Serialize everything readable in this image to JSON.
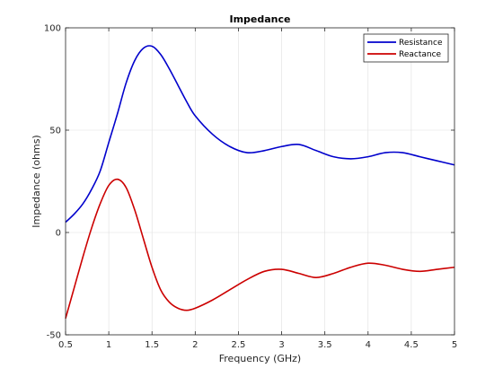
{
  "chart_data": {
    "type": "line",
    "title": "Impedance",
    "xlabel": "Frequency (GHz)",
    "ylabel": "Impedance (ohms)",
    "xlim": [
      0.5,
      5
    ],
    "ylim": [
      -50,
      100
    ],
    "xticks": [
      0.5,
      1,
      1.5,
      2,
      2.5,
      3,
      3.5,
      4,
      4.5,
      5
    ],
    "xtick_labels": [
      "0.5",
      "1",
      "1.5",
      "2",
      "2.5",
      "3",
      "3.5",
      "4",
      "4.5",
      "5"
    ],
    "yticks": [
      -50,
      0,
      50,
      100
    ],
    "ytick_labels": [
      "-50",
      "0",
      "50",
      "100"
    ],
    "grid": true,
    "legend_position": "top-right",
    "series": [
      {
        "name": "Resistance",
        "color": "#0000cc",
        "x": [
          0.5,
          0.6,
          0.7,
          0.8,
          0.9,
          1.0,
          1.1,
          1.2,
          1.3,
          1.4,
          1.5,
          1.6,
          1.7,
          1.8,
          1.9,
          2.0,
          2.2,
          2.4,
          2.6,
          2.8,
          3.0,
          3.2,
          3.4,
          3.6,
          3.8,
          4.0,
          4.2,
          4.4,
          4.6,
          4.8,
          5.0
        ],
        "y": [
          5,
          9,
          14,
          21,
          30,
          44,
          58,
          73,
          84,
          90,
          91,
          87,
          80,
          72,
          64,
          57,
          48,
          42,
          39,
          40,
          42,
          43,
          40,
          37,
          36,
          37,
          39,
          39,
          37,
          35,
          33
        ]
      },
      {
        "name": "Reactance",
        "color": "#cc0000",
        "x": [
          0.5,
          0.6,
          0.7,
          0.8,
          0.9,
          1.0,
          1.1,
          1.2,
          1.3,
          1.4,
          1.5,
          1.6,
          1.7,
          1.8,
          1.9,
          2.0,
          2.2,
          2.4,
          2.6,
          2.8,
          3.0,
          3.2,
          3.4,
          3.6,
          3.8,
          4.0,
          4.2,
          4.4,
          4.6,
          4.8,
          5.0
        ],
        "y": [
          -42,
          -27,
          -12,
          2,
          14,
          23,
          26,
          22,
          11,
          -3,
          -17,
          -28,
          -34,
          -37,
          -38,
          -37,
          -33,
          -28,
          -23,
          -19,
          -18,
          -20,
          -22,
          -20,
          -17,
          -15,
          -16,
          -18,
          -19,
          -18,
          -17
        ]
      }
    ]
  }
}
